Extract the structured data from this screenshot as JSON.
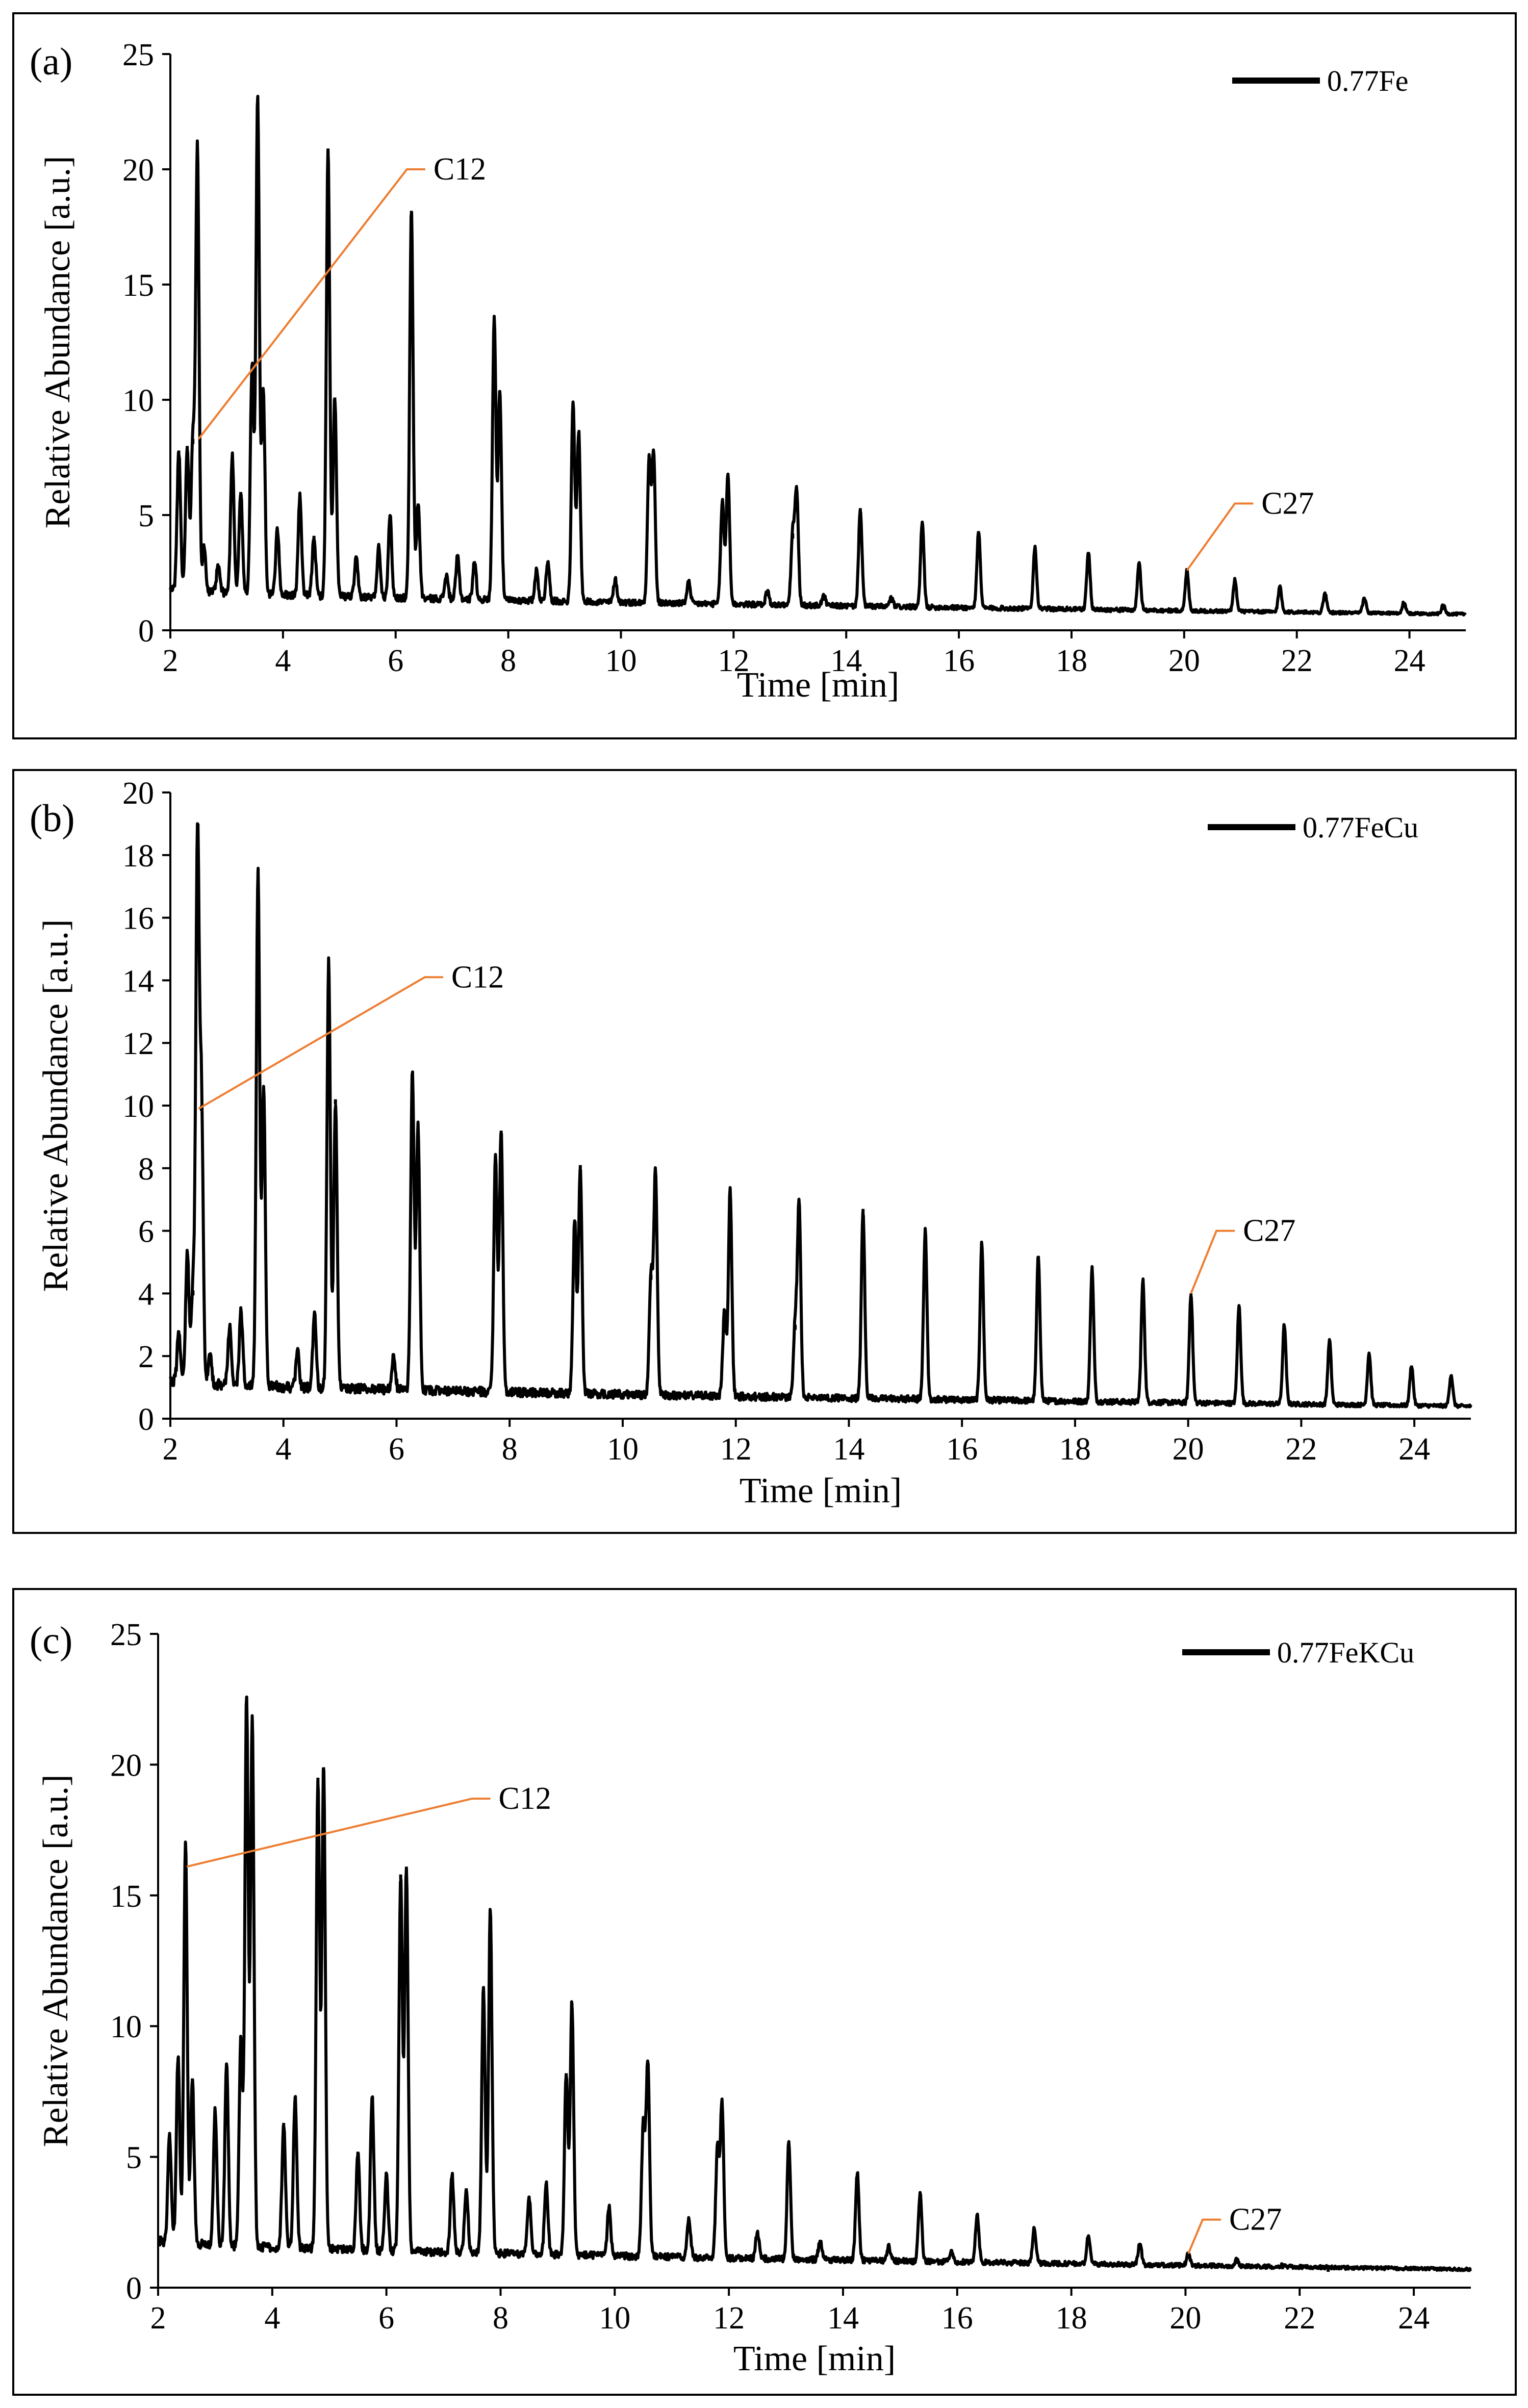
{
  "chart_data": [
    {
      "type": "line",
      "panel_label": "(a)",
      "legend": [
        "0.77Fe"
      ],
      "legend_position": "top-right",
      "xlabel": "Time [min]",
      "ylabel": "Relative Abundance [a.u.]",
      "xlim": [
        2,
        25
      ],
      "ylim": [
        0,
        25
      ],
      "xticks": [
        "2",
        "4",
        "6",
        "8",
        "10",
        "12",
        "14",
        "16",
        "18",
        "20",
        "22",
        "24"
      ],
      "yticks": [
        "0",
        "5",
        "10",
        "15",
        "20",
        "25"
      ],
      "baseline_start": 1.8,
      "baseline_end": 0.7,
      "annotations": [
        {
          "text": "C12",
          "point_x": 2.5,
          "point_y": 8.3,
          "label_x": 6.2,
          "label_y": 20.0
        },
        {
          "text": "C27",
          "point_x": 20.05,
          "point_y": 2.6,
          "label_x": 20.9,
          "label_y": 5.5
        }
      ],
      "peaks": [
        [
          2.15,
          7.8
        ],
        [
          2.3,
          8.0
        ],
        [
          2.4,
          8.3
        ],
        [
          2.48,
          20.9
        ],
        [
          2.6,
          3.6
        ],
        [
          2.85,
          2.8
        ],
        [
          3.1,
          7.6
        ],
        [
          3.25,
          6.0
        ],
        [
          3.45,
          11.5
        ],
        [
          3.55,
          23.1
        ],
        [
          3.65,
          10.4
        ],
        [
          3.9,
          4.4
        ],
        [
          4.3,
          5.8
        ],
        [
          4.55,
          4.1
        ],
        [
          4.8,
          20.9
        ],
        [
          4.92,
          10.1
        ],
        [
          5.3,
          3.1
        ],
        [
          5.7,
          3.6
        ],
        [
          5.9,
          5.0
        ],
        [
          6.28,
          18.2
        ],
        [
          6.4,
          5.5
        ],
        [
          6.9,
          2.4
        ],
        [
          7.1,
          3.2
        ],
        [
          7.4,
          3.0
        ],
        [
          7.75,
          13.6
        ],
        [
          7.85,
          10.4
        ],
        [
          8.5,
          2.6
        ],
        [
          8.7,
          3.0
        ],
        [
          9.15,
          9.8
        ],
        [
          9.25,
          8.6
        ],
        [
          9.9,
          2.2
        ],
        [
          10.5,
          7.4
        ],
        [
          10.58,
          7.6
        ],
        [
          11.2,
          2.1
        ],
        [
          11.8,
          5.6
        ],
        [
          11.9,
          6.8
        ],
        [
          12.6,
          1.7
        ],
        [
          13.05,
          4.2
        ],
        [
          13.12,
          6.0
        ],
        [
          13.6,
          1.5
        ],
        [
          14.25,
          5.3
        ],
        [
          14.8,
          1.4
        ],
        [
          15.35,
          4.7
        ],
        [
          16.35,
          4.3
        ],
        [
          17.35,
          3.6
        ],
        [
          18.3,
          3.4
        ],
        [
          19.2,
          2.9
        ],
        [
          20.05,
          2.6
        ],
        [
          20.9,
          2.2
        ],
        [
          21.7,
          1.9
        ],
        [
          22.5,
          1.6
        ],
        [
          23.2,
          1.4
        ],
        [
          23.9,
          1.2
        ],
        [
          24.6,
          1.1
        ]
      ]
    },
    {
      "type": "line",
      "panel_label": "(b)",
      "legend": [
        "0.77FeCu"
      ],
      "legend_position": "top-right",
      "xlabel": "Time [min]",
      "ylabel": "Relative Abundance [a.u.]",
      "xlim": [
        2,
        25
      ],
      "ylim": [
        0,
        20
      ],
      "xticks": [
        "2",
        "4",
        "6",
        "8",
        "10",
        "12",
        "14",
        "16",
        "18",
        "20",
        "22",
        "24"
      ],
      "yticks": [
        "0",
        "2",
        "4",
        "6",
        "8",
        "10",
        "12",
        "14",
        "16",
        "18",
        "20"
      ],
      "baseline_start": 1.2,
      "baseline_end": 0.4,
      "annotations": [
        {
          "text": "C12",
          "point_x": 2.5,
          "point_y": 9.9,
          "label_x": 6.5,
          "label_y": 14.1
        },
        {
          "text": "C27",
          "point_x": 20.05,
          "point_y": 4.0,
          "label_x": 20.5,
          "label_y": 6.0
        }
      ],
      "peaks": [
        [
          2.15,
          2.8
        ],
        [
          2.3,
          5.3
        ],
        [
          2.4,
          4.1
        ],
        [
          2.48,
          18.5
        ],
        [
          2.55,
          10.0
        ],
        [
          2.7,
          2.1
        ],
        [
          3.05,
          2.9
        ],
        [
          3.25,
          3.4
        ],
        [
          3.55,
          17.5
        ],
        [
          3.65,
          10.5
        ],
        [
          4.25,
          2.1
        ],
        [
          4.55,
          3.3
        ],
        [
          4.8,
          14.6
        ],
        [
          4.92,
          10.2
        ],
        [
          5.95,
          2.0
        ],
        [
          6.28,
          11.0
        ],
        [
          6.38,
          9.4
        ],
        [
          7.75,
          8.4
        ],
        [
          7.85,
          9.2
        ],
        [
          9.15,
          6.3
        ],
        [
          9.25,
          8.1
        ],
        [
          10.5,
          4.6
        ],
        [
          10.58,
          7.9
        ],
        [
          11.8,
          3.4
        ],
        [
          11.9,
          7.3
        ],
        [
          13.05,
          3.0
        ],
        [
          13.12,
          6.8
        ],
        [
          14.25,
          6.7
        ],
        [
          15.35,
          6.0
        ],
        [
          16.35,
          5.6
        ],
        [
          17.35,
          5.2
        ],
        [
          18.3,
          4.8
        ],
        [
          19.2,
          4.4
        ],
        [
          20.05,
          4.0
        ],
        [
          20.9,
          3.6
        ],
        [
          21.7,
          3.0
        ],
        [
          22.5,
          2.5
        ],
        [
          23.2,
          2.1
        ],
        [
          23.95,
          1.7
        ],
        [
          24.65,
          1.4
        ]
      ]
    },
    {
      "type": "line",
      "panel_label": "(c)",
      "legend": [
        "0.77FeKCu"
      ],
      "legend_position": "top-right",
      "xlabel": "Time [min]",
      "ylabel": "Relative Abundance [a.u.]",
      "xlim": [
        2,
        25
      ],
      "ylim": [
        0,
        25
      ],
      "xticks": [
        "2",
        "4",
        "6",
        "8",
        "10",
        "12",
        "14",
        "16",
        "18",
        "20",
        "22",
        "24"
      ],
      "yticks": [
        "0",
        "5",
        "10",
        "15",
        "20",
        "25"
      ],
      "baseline_start": 1.8,
      "baseline_end": 0.7,
      "annotations": [
        {
          "text": "C12",
          "point_x": 2.5,
          "point_y": 16.1,
          "label_x": 7.5,
          "label_y": 18.7
        },
        {
          "text": "C27",
          "point_x": 20.05,
          "point_y": 1.3,
          "label_x": 20.3,
          "label_y": 2.6
        }
      ],
      "peaks": [
        [
          2.2,
          5.8
        ],
        [
          2.35,
          8.8
        ],
        [
          2.48,
          17.0
        ],
        [
          2.6,
          8.0
        ],
        [
          3.0,
          6.8
        ],
        [
          3.2,
          8.5
        ],
        [
          3.45,
          9.5
        ],
        [
          3.55,
          22.6
        ],
        [
          3.65,
          21.7
        ],
        [
          4.2,
          6.3
        ],
        [
          4.4,
          7.3
        ],
        [
          4.8,
          19.5
        ],
        [
          4.9,
          19.9
        ],
        [
          5.5,
          5.2
        ],
        [
          5.75,
          7.3
        ],
        [
          6.0,
          4.3
        ],
        [
          6.25,
          15.8
        ],
        [
          6.35,
          16.1
        ],
        [
          7.15,
          4.3
        ],
        [
          7.4,
          3.8
        ],
        [
          7.7,
          11.5
        ],
        [
          7.82,
          14.4
        ],
        [
          8.5,
          3.5
        ],
        [
          8.8,
          4.0
        ],
        [
          9.15,
          8.2
        ],
        [
          9.25,
          10.9
        ],
        [
          9.9,
          3.1
        ],
        [
          10.5,
          6.2
        ],
        [
          10.58,
          8.6
        ],
        [
          11.3,
          2.6
        ],
        [
          11.8,
          5.3
        ],
        [
          11.88,
          7.0
        ],
        [
          12.5,
          2.1
        ],
        [
          13.05,
          5.6
        ],
        [
          13.6,
          1.8
        ],
        [
          14.25,
          4.4
        ],
        [
          14.8,
          1.6
        ],
        [
          15.35,
          3.6
        ],
        [
          15.9,
          1.4
        ],
        [
          16.35,
          2.8
        ],
        [
          17.35,
          2.3
        ],
        [
          18.3,
          2.0
        ],
        [
          19.2,
          1.7
        ],
        [
          20.05,
          1.3
        ],
        [
          20.9,
          1.1
        ],
        [
          21.7,
          0.9
        ],
        [
          22.5,
          0.8
        ]
      ]
    }
  ]
}
